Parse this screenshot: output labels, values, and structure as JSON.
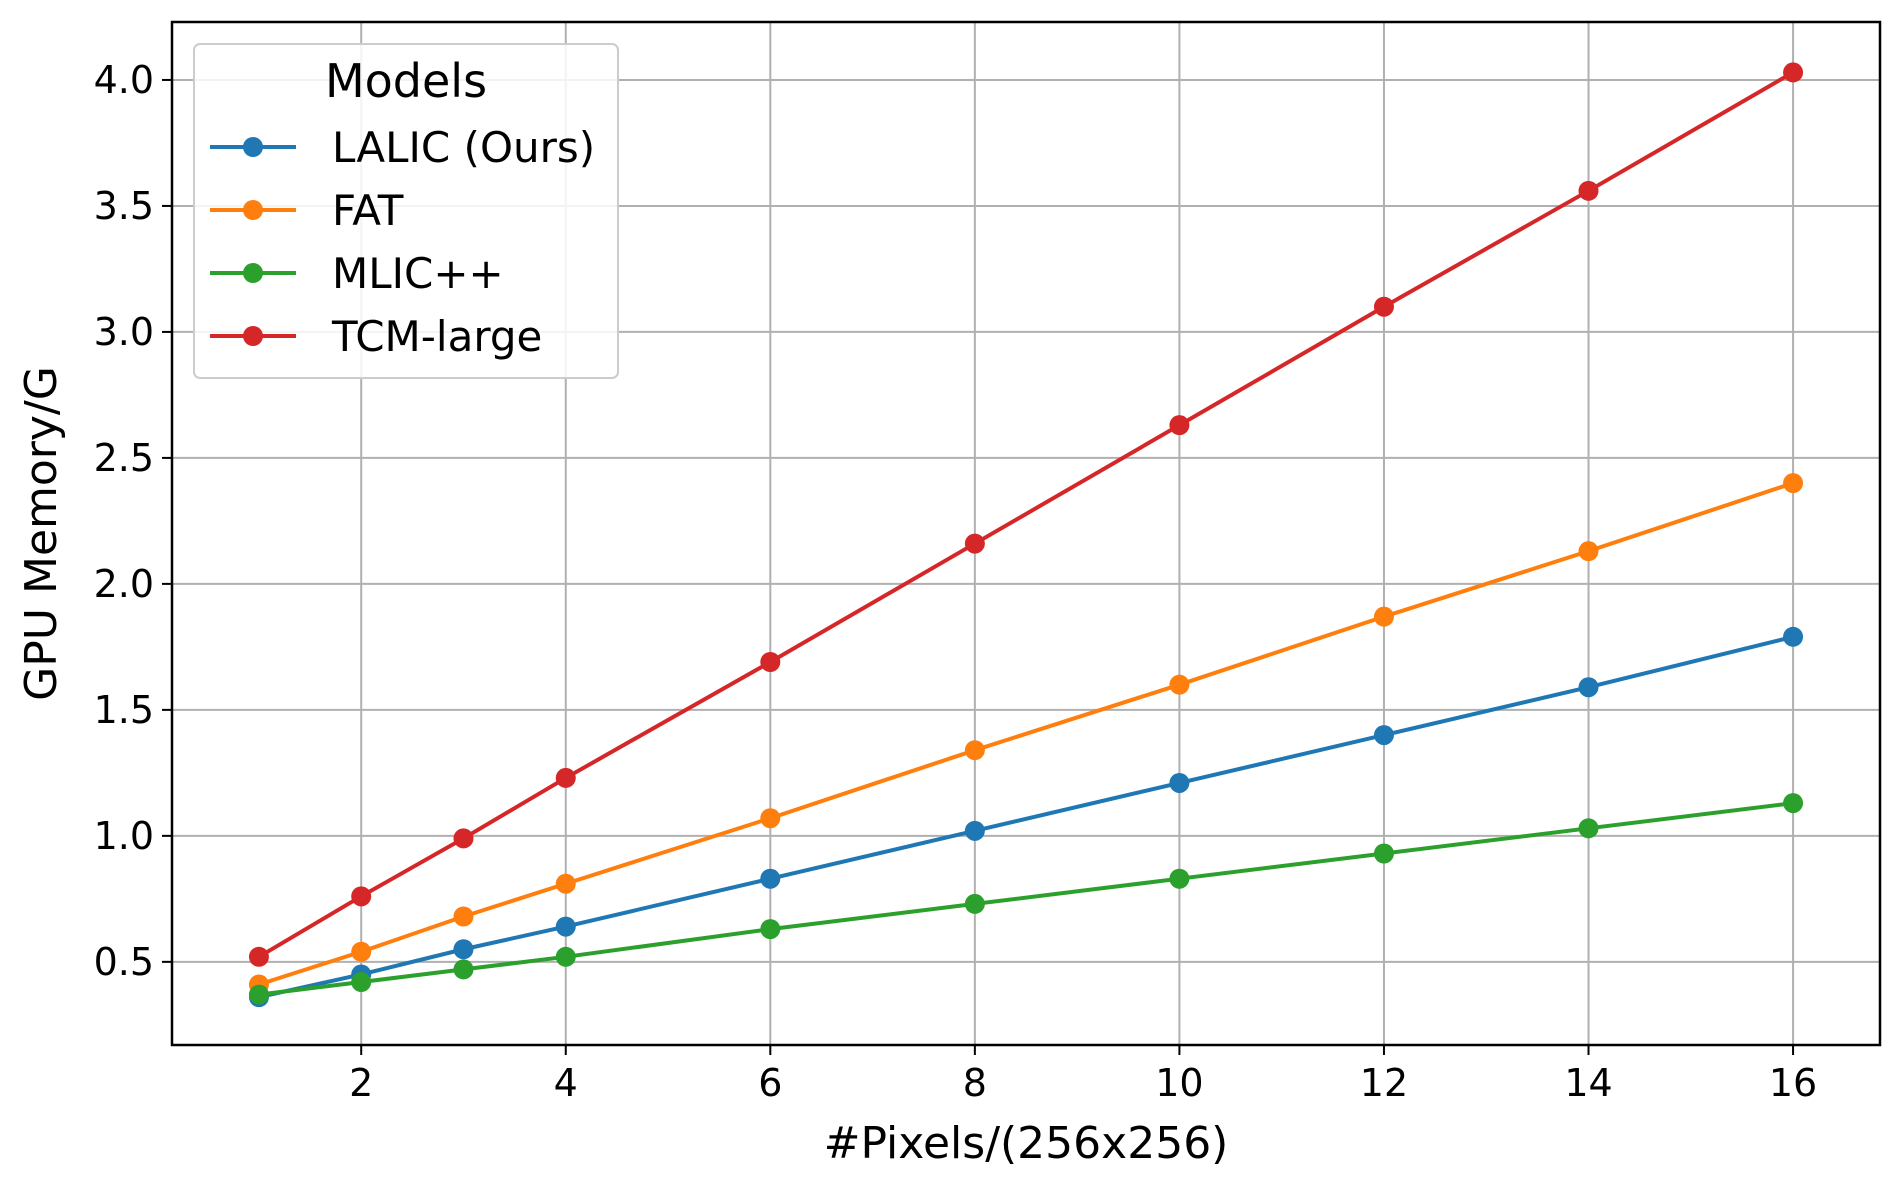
{
  "chart_data": {
    "type": "line",
    "xlabel": "#Pixels/(256x256)",
    "ylabel": "GPU Memory/G",
    "xlim": [
      0.15,
      16.85
    ],
    "ylim": [
      0.17,
      4.23
    ],
    "xticks": [
      2,
      4,
      6,
      8,
      10,
      12,
      14,
      16
    ],
    "xtick_labels": [
      "2",
      "4",
      "6",
      "8",
      "10",
      "12",
      "14",
      "16"
    ],
    "yticks": [
      0.5,
      1.0,
      1.5,
      2.0,
      2.5,
      3.0,
      3.5,
      4.0
    ],
    "ytick_labels": [
      "0.5",
      "1.0",
      "1.5",
      "2.0",
      "2.5",
      "3.0",
      "3.5",
      "4.0"
    ],
    "grid": true,
    "legend": {
      "title": "Models",
      "placement": "top-left"
    },
    "x": [
      1,
      2,
      3,
      4,
      6,
      8,
      10,
      12,
      14,
      16
    ],
    "series": [
      {
        "name": "LALIC (Ours)",
        "color": "#1f77b4",
        "values": [
          0.36,
          0.45,
          0.55,
          0.64,
          0.83,
          1.02,
          1.21,
          1.4,
          1.59,
          1.79
        ]
      },
      {
        "name": "FAT",
        "color": "#ff7f0e",
        "values": [
          0.41,
          0.54,
          0.68,
          0.81,
          1.07,
          1.34,
          1.6,
          1.87,
          2.13,
          2.4
        ]
      },
      {
        "name": "MLIC++",
        "color": "#2ca02c",
        "values": [
          0.37,
          0.42,
          0.47,
          0.52,
          0.63,
          0.73,
          0.83,
          0.93,
          1.03,
          1.13
        ]
      },
      {
        "name": "TCM-large",
        "color": "#d62728",
        "values": [
          0.52,
          0.76,
          0.99,
          1.23,
          1.69,
          2.16,
          2.63,
          3.1,
          3.56,
          4.03
        ]
      }
    ]
  }
}
